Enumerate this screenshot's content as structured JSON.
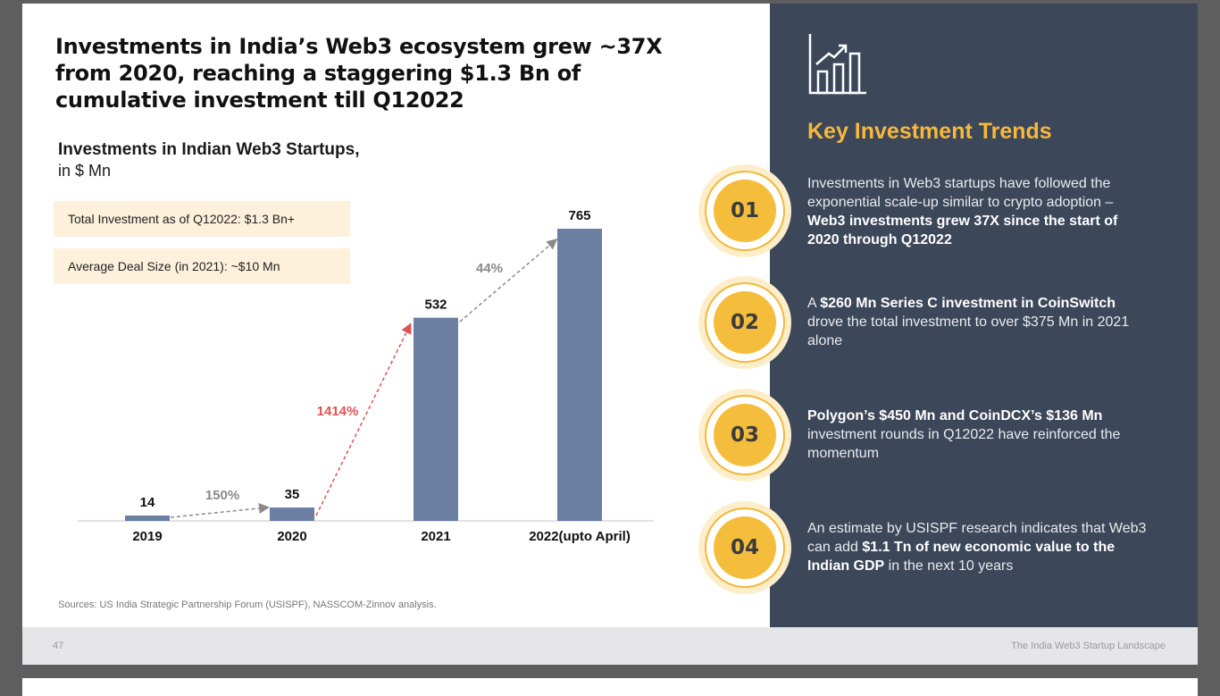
{
  "headline": "Investments in India’s Web3 ecosystem grew ~37X from 2020, reaching a staggering $1.3 Bn of cumulative investment till Q12022",
  "chart": {
    "title": "Investments in Indian Web3 Startups,",
    "unit": "in $ Mn"
  },
  "callouts": [
    "Total Investment as of Q12022: $1.3 Bn+",
    "Average Deal Size (in 2021): ~$10 Mn"
  ],
  "chart_data": {
    "type": "bar",
    "title": "Investments in Indian Web3 Startups, in $ Mn",
    "categories": [
      "2019",
      "2020",
      "2021",
      "2022(upto April)"
    ],
    "values": [
      14,
      35,
      532,
      765
    ],
    "growth_labels": [
      {
        "from": "2019",
        "to": "2020",
        "label": "150%",
        "color": "#8a8a8a"
      },
      {
        "from": "2020",
        "to": "2021",
        "label": "1414%",
        "color": "#e05252"
      },
      {
        "from": "2021",
        "to": "2022(upto April)",
        "label": "44%",
        "color": "#8a8a8a"
      }
    ],
    "bar_color": "#6b7fa3",
    "ylim": [
      0,
      800
    ],
    "xlabel": "",
    "ylabel": ""
  },
  "source": "Sources: US India Strategic Partnership Forum (USISPF), NASSCOM-Zinnov analysis.",
  "trends": {
    "title": "Key Investment Trends",
    "items": [
      {
        "num": "01",
        "segments": [
          {
            "text": "Investments in Web3 startups have followed the exponential scale-up similar to crypto adoption – ",
            "bold": false
          },
          {
            "text": "Web3 investments grew 37X since the start of 2020 through Q12022",
            "bold": true
          }
        ]
      },
      {
        "num": "02",
        "segments": [
          {
            "text": "A ",
            "bold": false
          },
          {
            "text": "$260 Mn Series C investment in CoinSwitch",
            "bold": true
          },
          {
            "text": " drove the total investment to over $375 Mn in 2021 alone",
            "bold": false
          }
        ]
      },
      {
        "num": "03",
        "segments": [
          {
            "text": "Polygon’s $450 Mn and CoinDCX’s $136 Mn",
            "bold": true
          },
          {
            "text": " investment rounds in Q12022 have reinforced the momentum",
            "bold": false
          }
        ]
      },
      {
        "num": "04",
        "segments": [
          {
            "text": "An estimate by USISPF research indicates that Web3 can add ",
            "bold": false
          },
          {
            "text": "$1.1 Tn of new economic value to the Indian GDP",
            "bold": true
          },
          {
            "text": " in the next 10 years",
            "bold": false
          }
        ]
      }
    ]
  },
  "footer": {
    "page": "47",
    "doc": "The India Web3 Startup Landscape"
  },
  "colors": {
    "panel": "#3c475a",
    "accent": "#f4be3c",
    "bar": "#6b7fa3"
  }
}
